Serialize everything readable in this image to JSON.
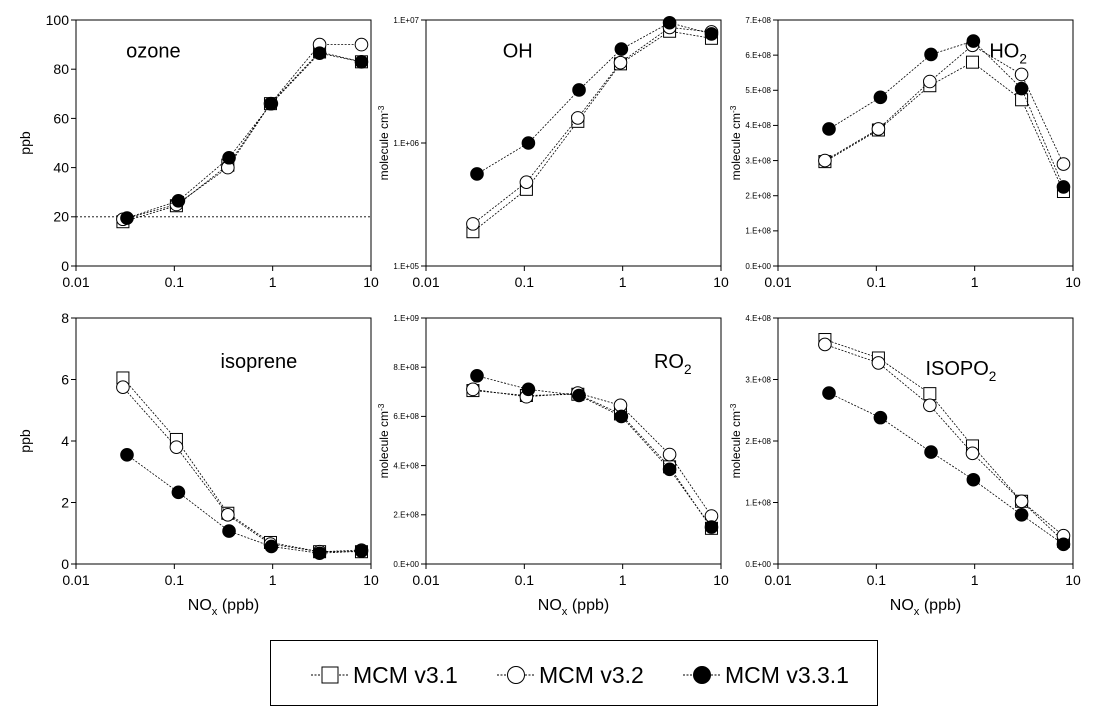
{
  "chart_data": [
    {
      "type": "scatter",
      "title": "ozone",
      "xlabel": "",
      "ylabel": "ppb",
      "xscale": "log",
      "xlim": [
        0.01,
        10
      ],
      "xticks": [
        "0.01",
        "0.1",
        "1",
        "10"
      ],
      "yscale": "linear",
      "ylim": [
        0,
        100
      ],
      "yticks": [
        "0",
        "20",
        "40",
        "60",
        "80",
        "100"
      ],
      "reference_line": 20,
      "series": [
        {
          "name": "MCM v3.1",
          "x": [
            0.03,
            0.105,
            0.35,
            0.95,
            3,
            8
          ],
          "y": [
            18,
            24.5,
            41,
            66,
            87,
            83
          ]
        },
        {
          "name": "MCM v3.2",
          "x": [
            0.03,
            0.105,
            0.35,
            0.95,
            3,
            8
          ],
          "y": [
            19,
            25,
            40,
            66,
            90,
            90
          ]
        },
        {
          "name": "MCM v3.3.1",
          "x": [
            0.033,
            0.11,
            0.36,
            0.97,
            3,
            8
          ],
          "y": [
            19.5,
            26.5,
            44,
            66,
            86.5,
            83
          ]
        }
      ]
    },
    {
      "type": "scatter",
      "title": "OH",
      "xlabel": "",
      "ylabel": "molecule cm-3",
      "xscale": "log",
      "xlim": [
        0.01,
        10
      ],
      "xticks": [
        "0.01",
        "0.1",
        "1",
        "10"
      ],
      "yscale": "log",
      "ylim": [
        100000,
        10000000
      ],
      "yticks": [
        "1.E+05",
        "1.E+06",
        "1.E+07"
      ],
      "series": [
        {
          "name": "MCM v3.1",
          "x": [
            0.03,
            0.105,
            0.35,
            0.95,
            3,
            8
          ],
          "y": [
            190000,
            420000,
            1500000,
            4400000,
            8100000,
            7100000
          ]
        },
        {
          "name": "MCM v3.2",
          "x": [
            0.03,
            0.105,
            0.35,
            0.95,
            3,
            8
          ],
          "y": [
            220000,
            480000,
            1600000,
            4500000,
            8700000,
            8000000
          ]
        },
        {
          "name": "MCM v3.3.1",
          "x": [
            0.033,
            0.11,
            0.36,
            0.97,
            3,
            8
          ],
          "y": [
            560000,
            1000000,
            2700000,
            5800000,
            9500000,
            7700000
          ]
        }
      ]
    },
    {
      "type": "scatter",
      "title": "HO2",
      "xlabel": "",
      "ylabel": "molecule cm-3",
      "xscale": "log",
      "xlim": [
        0.01,
        10
      ],
      "xticks": [
        "0.01",
        "0.1",
        "1",
        "10"
      ],
      "yscale": "linear",
      "ylim": [
        0,
        700000000
      ],
      "yticks": [
        "0.E+00",
        "1.E+08",
        "2.E+08",
        "3.E+08",
        "4.E+08",
        "5.E+08",
        "6.E+08",
        "7.E+08"
      ],
      "series": [
        {
          "name": "MCM v3.1",
          "x": [
            0.03,
            0.105,
            0.35,
            0.95,
            3,
            8
          ],
          "y": [
            297000000,
            387000000,
            513000000,
            580000000,
            473000000,
            212000000
          ]
        },
        {
          "name": "MCM v3.2",
          "x": [
            0.03,
            0.105,
            0.35,
            0.95,
            3,
            8
          ],
          "y": [
            300000000,
            390000000,
            525000000,
            628000000,
            545000000,
            290000000
          ]
        },
        {
          "name": "MCM v3.3.1",
          "x": [
            0.033,
            0.11,
            0.36,
            0.97,
            3,
            8
          ],
          "y": [
            390000000,
            480000000,
            602000000,
            640000000,
            505000000,
            225000000
          ]
        }
      ]
    },
    {
      "type": "scatter",
      "title": "isoprene",
      "xlabel": "NOx (ppb)",
      "ylabel": "ppb",
      "xscale": "log",
      "xlim": [
        0.01,
        10
      ],
      "xticks": [
        "0.01",
        "0.1",
        "1",
        "10"
      ],
      "yscale": "linear",
      "ylim": [
        0,
        8
      ],
      "yticks": [
        "0",
        "2",
        "4",
        "6",
        "8"
      ],
      "series": [
        {
          "name": "MCM v3.1",
          "x": [
            0.03,
            0.105,
            0.35,
            0.95,
            3,
            8
          ],
          "y": [
            6.05,
            4.05,
            1.65,
            0.7,
            0.4,
            0.4
          ]
        },
        {
          "name": "MCM v3.2",
          "x": [
            0.03,
            0.105,
            0.35,
            0.95,
            3,
            8
          ],
          "y": [
            5.75,
            3.8,
            1.6,
            0.65,
            0.4,
            0.45
          ]
        },
        {
          "name": "MCM v3.3.1",
          "x": [
            0.033,
            0.11,
            0.36,
            0.97,
            3,
            8
          ],
          "y": [
            3.55,
            2.33,
            1.07,
            0.57,
            0.35,
            0.42
          ]
        }
      ]
    },
    {
      "type": "scatter",
      "title": "RO2",
      "xlabel": "NOx (ppb)",
      "ylabel": "molecule cm-3",
      "xscale": "log",
      "xlim": [
        0.01,
        10
      ],
      "xticks": [
        "0.01",
        "0.1",
        "1",
        "10"
      ],
      "yscale": "linear",
      "ylim": [
        0,
        1000000000
      ],
      "yticks": [
        "0.E+00",
        "2.E+08",
        "4.E+08",
        "6.E+08",
        "8.E+08",
        "1.E+09"
      ],
      "series": [
        {
          "name": "MCM v3.1",
          "x": [
            0.03,
            0.105,
            0.35,
            0.95,
            3,
            8
          ],
          "y": [
            705000000,
            685000000,
            690000000,
            610000000,
            395000000,
            145000000
          ]
        },
        {
          "name": "MCM v3.2",
          "x": [
            0.03,
            0.105,
            0.35,
            0.95,
            3,
            8
          ],
          "y": [
            710000000,
            680000000,
            695000000,
            645000000,
            445000000,
            195000000
          ]
        },
        {
          "name": "MCM v3.3.1",
          "x": [
            0.033,
            0.11,
            0.36,
            0.97,
            3,
            8
          ],
          "y": [
            765000000,
            710000000,
            685000000,
            600000000,
            385000000,
            150000000
          ]
        }
      ]
    },
    {
      "type": "scatter",
      "title": "ISOPO2",
      "xlabel": "NOx (ppb)",
      "ylabel": "molecule cm-3",
      "xscale": "log",
      "xlim": [
        0.01,
        10
      ],
      "xticks": [
        "0.01",
        "0.1",
        "1",
        "10"
      ],
      "yscale": "linear",
      "ylim": [
        0,
        400000000
      ],
      "yticks": [
        "0.E+00",
        "1.E+08",
        "2.E+08",
        "3.E+08",
        "4.E+08"
      ],
      "series": [
        {
          "name": "MCM v3.1",
          "x": [
            0.03,
            0.105,
            0.35,
            0.95,
            3,
            8
          ],
          "y": [
            365000000,
            335000000,
            277000000,
            192000000,
            102000000,
            37000000
          ]
        },
        {
          "name": "MCM v3.2",
          "x": [
            0.03,
            0.105,
            0.35,
            0.95,
            3,
            8
          ],
          "y": [
            357000000,
            327000000,
            258000000,
            180000000,
            102000000,
            46000000
          ]
        },
        {
          "name": "MCM v3.3.1",
          "x": [
            0.033,
            0.11,
            0.36,
            0.97,
            3,
            8
          ],
          "y": [
            278000000,
            238000000,
            182000000,
            137000000,
            80000000,
            32000000
          ]
        }
      ]
    }
  ],
  "legend": {
    "entries": [
      {
        "label": "MCM v3.1",
        "marker": "open-square"
      },
      {
        "label": "MCM v3.2",
        "marker": "open-circle"
      },
      {
        "label": "MCM v3.3.1",
        "marker": "filled-circle"
      }
    ]
  }
}
